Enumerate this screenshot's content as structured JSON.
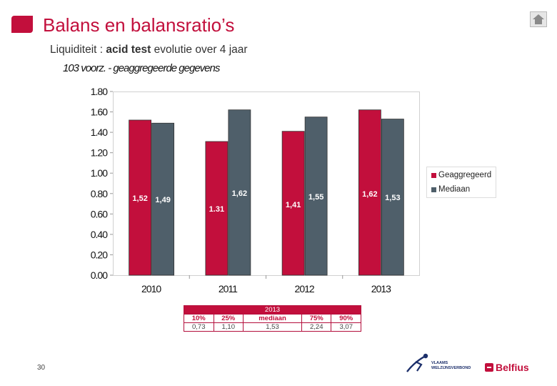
{
  "slide": {
    "title": "Balans en balansratio’s",
    "subtitle_prefix": "Liquiditeit : ",
    "subtitle_bold": "acid test",
    "subtitle_suffix": " evolutie over 4 jaar",
    "page_number": "30"
  },
  "logos": {
    "vvsg_line1": "VLAAMS",
    "vvsg_line2": "WELZIJNSVERBOND",
    "belfius": "Belfius"
  },
  "colors": {
    "title_accent": "#c20f3c",
    "series_1": "#c20f3c",
    "series_2": "#4f5f6a"
  },
  "chart_data": {
    "type": "bar",
    "title": "103  voorz. - geaggregeerde gegevens",
    "categories": [
      "2010",
      "2011",
      "2012",
      "2013"
    ],
    "series": [
      {
        "name": "Geaggregeerd",
        "values": [
          1.52,
          1.31,
          1.41,
          1.62
        ],
        "labels": [
          "1,52",
          "1.31",
          "1,41",
          "1,62"
        ]
      },
      {
        "name": "Mediaan",
        "values": [
          1.49,
          1.62,
          1.55,
          1.53
        ],
        "labels": [
          "1,49",
          "1,62",
          "1,55",
          "1,53"
        ]
      }
    ],
    "ylim": [
      0,
      1.8
    ],
    "yticks": [
      "0.00",
      "0.20",
      "0.40",
      "0.60",
      "0.80",
      "1.00",
      "1.20",
      "1.40",
      "1.60",
      "1.80"
    ],
    "grid": false,
    "legend": "right"
  },
  "percentile_table": {
    "year": "2013",
    "headers": [
      "10%",
      "25%",
      "mediaan",
      "75%",
      "90%"
    ],
    "values": [
      "0,73",
      "1,10",
      "1,53",
      "2,24",
      "3,07"
    ]
  }
}
